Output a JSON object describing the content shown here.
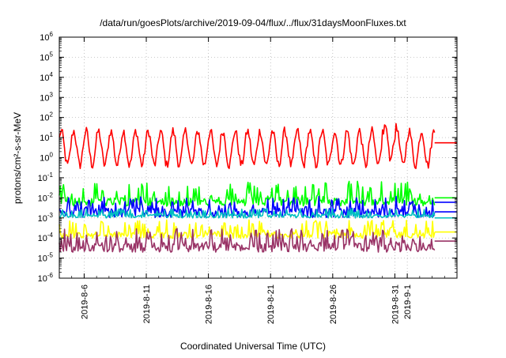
{
  "chart_data": {
    "type": "line",
    "title": "/data/run/goesPlots/archive/2019-09-04/flux/../flux/31daysMoonFluxes.txt",
    "xlabel": "Coordinated Universal Time (UTC)",
    "ylabel": "protons/cm²-s-sr-MeV",
    "yscale": "log",
    "ylim": [
      1e-06,
      1000000.0
    ],
    "xlim": [
      "2019-08-04",
      "2019-09-05"
    ],
    "x_tick_labels": [
      "2019-8-6",
      "2019-8-11",
      "2019-8-16",
      "2019-8-21",
      "2019-8-26",
      "2019-8-31",
      "2019-9-1"
    ],
    "x_tick_dates": [
      "2019-08-06",
      "2019-08-11",
      "2019-08-16",
      "2019-08-21",
      "2019-08-26",
      "2019-08-31",
      "2019-09-01"
    ],
    "y_tick_exponents": [
      -6,
      -5,
      -4,
      -3,
      -2,
      -1,
      0,
      1,
      2,
      3,
      4,
      5,
      6
    ],
    "grid": true,
    "series": [
      {
        "color": "#ff0000",
        "typical_value": 3.0,
        "min": 0.1,
        "max": 70,
        "pattern": "daily oscillation"
      },
      {
        "color": "#00ff00",
        "typical_value": 0.01,
        "min": 0.003,
        "max": 0.07
      },
      {
        "color": "#0000ff",
        "typical_value": 0.003,
        "min": 0.0008,
        "max": 0.012
      },
      {
        "color": "#00c0c0",
        "typical_value": 0.0015,
        "min": 0.0009,
        "max": 0.003
      },
      {
        "color": "#ffff00",
        "typical_value": 0.0002,
        "min": 8e-05,
        "max": 0.0008
      },
      {
        "color": "#993366",
        "typical_value": 6e-05,
        "min": 1.5e-05,
        "max": 0.0003
      }
    ],
    "reference_lines": [
      {
        "color": "#ff0000",
        "value": 5.5
      },
      {
        "color": "#00ff00",
        "value": 0.01
      },
      {
        "color": "#0000ff",
        "value": 0.006
      },
      {
        "color": "#0000ff",
        "value": 0.002
      },
      {
        "color": "#00c0c0",
        "value": 0.001
      },
      {
        "color": "#ffff00",
        "value": 0.0002
      },
      {
        "color": "#993366",
        "value": 7e-05
      }
    ]
  }
}
